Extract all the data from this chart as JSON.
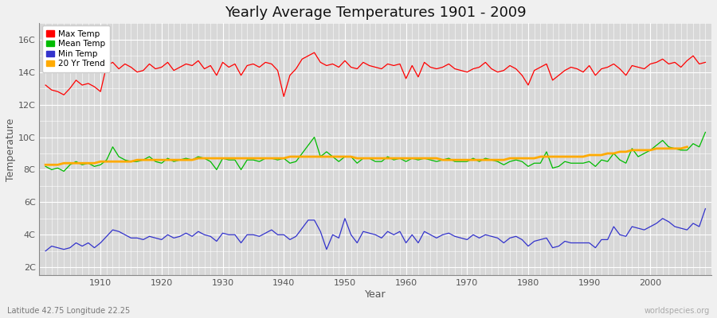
{
  "title": "Yearly Average Temperatures 1901 - 2009",
  "xlabel": "Year",
  "ylabel": "Temperature",
  "subtitle_lat": "Latitude 42.75 Longitude 22.25",
  "watermark": "worldspecies.org",
  "years": [
    1901,
    1902,
    1903,
    1904,
    1905,
    1906,
    1907,
    1908,
    1909,
    1910,
    1911,
    1912,
    1913,
    1914,
    1915,
    1916,
    1917,
    1918,
    1919,
    1920,
    1921,
    1922,
    1923,
    1924,
    1925,
    1926,
    1927,
    1928,
    1929,
    1930,
    1931,
    1932,
    1933,
    1934,
    1935,
    1936,
    1937,
    1938,
    1939,
    1940,
    1941,
    1942,
    1943,
    1944,
    1945,
    1946,
    1947,
    1948,
    1949,
    1950,
    1951,
    1952,
    1953,
    1954,
    1955,
    1956,
    1957,
    1958,
    1959,
    1960,
    1961,
    1962,
    1963,
    1964,
    1965,
    1966,
    1967,
    1968,
    1969,
    1970,
    1971,
    1972,
    1973,
    1974,
    1975,
    1976,
    1977,
    1978,
    1979,
    1980,
    1981,
    1982,
    1983,
    1984,
    1985,
    1986,
    1987,
    1988,
    1989,
    1990,
    1991,
    1992,
    1993,
    1994,
    1995,
    1996,
    1997,
    1998,
    1999,
    2000,
    2001,
    2002,
    2003,
    2004,
    2005,
    2006,
    2007,
    2008,
    2009
  ],
  "max_temp": [
    13.2,
    12.9,
    12.8,
    12.6,
    13.0,
    13.5,
    13.2,
    13.3,
    13.1,
    12.8,
    14.4,
    14.6,
    14.2,
    14.5,
    14.3,
    14.0,
    14.1,
    14.5,
    14.2,
    14.3,
    14.6,
    14.1,
    14.3,
    14.5,
    14.4,
    14.7,
    14.2,
    14.4,
    13.8,
    14.6,
    14.3,
    14.5,
    13.8,
    14.4,
    14.5,
    14.3,
    14.6,
    14.5,
    14.1,
    12.5,
    13.8,
    14.2,
    14.8,
    15.0,
    15.2,
    14.6,
    14.4,
    14.5,
    14.3,
    14.7,
    14.3,
    14.2,
    14.6,
    14.4,
    14.3,
    14.2,
    14.5,
    14.4,
    14.5,
    13.6,
    14.4,
    13.7,
    14.6,
    14.3,
    14.2,
    14.3,
    14.5,
    14.2,
    14.1,
    14.0,
    14.2,
    14.3,
    14.6,
    14.2,
    14.0,
    14.1,
    14.4,
    14.2,
    13.8,
    13.2,
    14.1,
    14.3,
    14.5,
    13.5,
    13.8,
    14.1,
    14.3,
    14.2,
    14.0,
    14.4,
    13.8,
    14.2,
    14.3,
    14.5,
    14.2,
    13.8,
    14.4,
    14.3,
    14.2,
    14.5,
    14.6,
    14.8,
    14.5,
    14.6,
    14.3,
    14.7,
    15.0,
    14.5,
    14.6
  ],
  "mean_temp": [
    8.2,
    8.0,
    8.1,
    7.9,
    8.3,
    8.5,
    8.3,
    8.4,
    8.2,
    8.3,
    8.6,
    9.4,
    8.8,
    8.6,
    8.5,
    8.5,
    8.6,
    8.8,
    8.5,
    8.4,
    8.7,
    8.5,
    8.6,
    8.7,
    8.6,
    8.8,
    8.7,
    8.5,
    8.0,
    8.7,
    8.6,
    8.6,
    8.0,
    8.6,
    8.6,
    8.5,
    8.7,
    8.7,
    8.6,
    8.7,
    8.4,
    8.5,
    9.0,
    9.5,
    10.0,
    8.8,
    9.1,
    8.8,
    8.5,
    8.8,
    8.8,
    8.4,
    8.7,
    8.7,
    8.5,
    8.5,
    8.8,
    8.6,
    8.7,
    8.5,
    8.7,
    8.6,
    8.7,
    8.6,
    8.5,
    8.6,
    8.7,
    8.5,
    8.5,
    8.5,
    8.7,
    8.5,
    8.7,
    8.6,
    8.5,
    8.3,
    8.5,
    8.6,
    8.5,
    8.2,
    8.4,
    8.4,
    9.1,
    8.1,
    8.2,
    8.5,
    8.4,
    8.4,
    8.4,
    8.5,
    8.2,
    8.6,
    8.5,
    9.0,
    8.6,
    8.4,
    9.3,
    8.8,
    9.0,
    9.2,
    9.5,
    9.8,
    9.4,
    9.3,
    9.2,
    9.2,
    9.6,
    9.4,
    10.3
  ],
  "min_temp": [
    3.0,
    3.3,
    3.2,
    3.1,
    3.2,
    3.5,
    3.3,
    3.5,
    3.2,
    3.5,
    3.9,
    4.3,
    4.2,
    4.0,
    3.8,
    3.8,
    3.7,
    3.9,
    3.8,
    3.7,
    4.0,
    3.8,
    3.9,
    4.1,
    3.9,
    4.2,
    4.0,
    3.9,
    3.6,
    4.1,
    4.0,
    4.0,
    3.5,
    4.0,
    4.0,
    3.9,
    4.1,
    4.3,
    4.0,
    4.0,
    3.7,
    3.9,
    4.4,
    4.9,
    4.9,
    4.2,
    3.1,
    4.0,
    3.8,
    5.0,
    4.0,
    3.5,
    4.2,
    4.1,
    4.0,
    3.8,
    4.2,
    4.0,
    4.2,
    3.5,
    4.0,
    3.5,
    4.2,
    4.0,
    3.8,
    4.0,
    4.1,
    3.9,
    3.8,
    3.7,
    4.0,
    3.8,
    4.0,
    3.9,
    3.8,
    3.5,
    3.8,
    3.9,
    3.7,
    3.3,
    3.6,
    3.7,
    3.8,
    3.2,
    3.3,
    3.6,
    3.5,
    3.5,
    3.5,
    3.5,
    3.2,
    3.7,
    3.7,
    4.5,
    4.0,
    3.9,
    4.5,
    4.4,
    4.3,
    4.5,
    4.7,
    5.0,
    4.8,
    4.5,
    4.4,
    4.3,
    4.7,
    4.5,
    5.6
  ],
  "trend": [
    8.3,
    8.3,
    8.3,
    8.4,
    8.4,
    8.4,
    8.4,
    8.4,
    8.4,
    8.5,
    8.5,
    8.5,
    8.5,
    8.5,
    8.5,
    8.6,
    8.6,
    8.6,
    8.6,
    8.6,
    8.6,
    8.6,
    8.6,
    8.6,
    8.6,
    8.7,
    8.7,
    8.7,
    8.7,
    8.7,
    8.7,
    8.7,
    8.7,
    8.7,
    8.7,
    8.7,
    8.7,
    8.7,
    8.7,
    8.7,
    8.8,
    8.8,
    8.8,
    8.8,
    8.8,
    8.8,
    8.8,
    8.8,
    8.8,
    8.8,
    8.8,
    8.7,
    8.7,
    8.7,
    8.7,
    8.7,
    8.7,
    8.7,
    8.7,
    8.7,
    8.7,
    8.7,
    8.7,
    8.7,
    8.7,
    8.6,
    8.6,
    8.6,
    8.6,
    8.6,
    8.6,
    8.6,
    8.6,
    8.6,
    8.6,
    8.6,
    8.7,
    8.7,
    8.7,
    8.7,
    8.7,
    8.8,
    8.8,
    8.8,
    8.8,
    8.8,
    8.8,
    8.8,
    8.8,
    8.9,
    8.9,
    8.9,
    9.0,
    9.0,
    9.1,
    9.1,
    9.2,
    9.2,
    9.2,
    9.2,
    9.3,
    9.3,
    9.3,
    9.3,
    9.3,
    9.4,
    null,
    null,
    null
  ],
  "max_color": "#ff0000",
  "mean_color": "#00bb00",
  "min_color": "#3333cc",
  "trend_color": "#ffaa00",
  "fig_bg_color": "#f0f0f0",
  "plot_bg_color": "#d8d8d8",
  "grid_color": "#ffffff",
  "yticks": [
    2,
    4,
    6,
    8,
    10,
    12,
    14,
    16
  ],
  "ylim": [
    1.5,
    17.0
  ],
  "xlim_min": 1900,
  "xlim_max": 2010,
  "xticks": [
    1910,
    1920,
    1930,
    1940,
    1950,
    1960,
    1970,
    1980,
    1990,
    2000
  ],
  "title_fontsize": 13,
  "tick_fontsize": 8,
  "label_fontsize": 9,
  "annot_fontsize": 7
}
